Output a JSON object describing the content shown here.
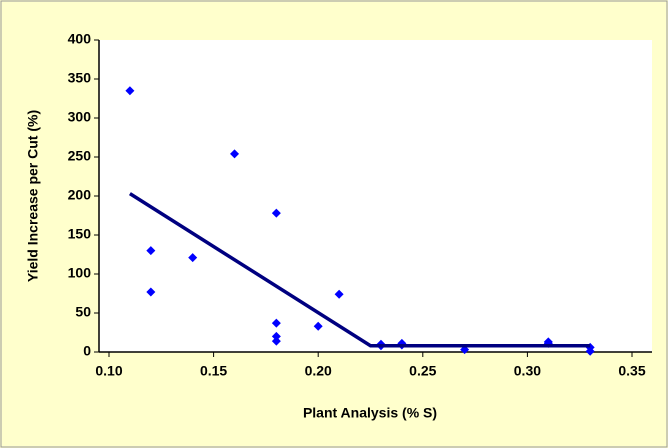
{
  "chart_data": {
    "type": "scatter",
    "x_label": "Plant Analysis (% S)",
    "y_label": "Yield Increase per Cut (%)",
    "xlim": [
      0.1,
      0.35
    ],
    "xticks": [
      {
        "value": 0.1,
        "label": "0.10"
      },
      {
        "value": 0.15,
        "label": "0.15"
      },
      {
        "value": 0.2,
        "label": "0.20"
      },
      {
        "value": 0.25,
        "label": "0.25"
      },
      {
        "value": 0.3,
        "label": "0.30"
      },
      {
        "value": 0.35,
        "label": "0.35"
      }
    ],
    "ylim": [
      0,
      400
    ],
    "yticks": [
      0,
      50,
      100,
      150,
      200,
      250,
      300,
      350,
      400
    ],
    "series": [
      {
        "mode": "markers",
        "color": "#0000ff",
        "x": [
          0.11,
          0.12,
          0.12,
          0.14,
          0.16,
          0.18,
          0.18,
          0.18,
          0.18,
          0.2,
          0.21,
          0.23,
          0.23,
          0.24,
          0.24,
          0.27,
          0.31,
          0.31,
          0.33,
          0.33
        ],
        "values": [
          335,
          130,
          77,
          121,
          254,
          178,
          37,
          20,
          14,
          33,
          74,
          10,
          8,
          11,
          9,
          3,
          13,
          11,
          6,
          1
        ]
      },
      {
        "mode": "line",
        "color": "#000080",
        "x": [
          0.11,
          0.225,
          0.33
        ],
        "values": [
          203,
          8,
          8
        ]
      }
    ]
  }
}
